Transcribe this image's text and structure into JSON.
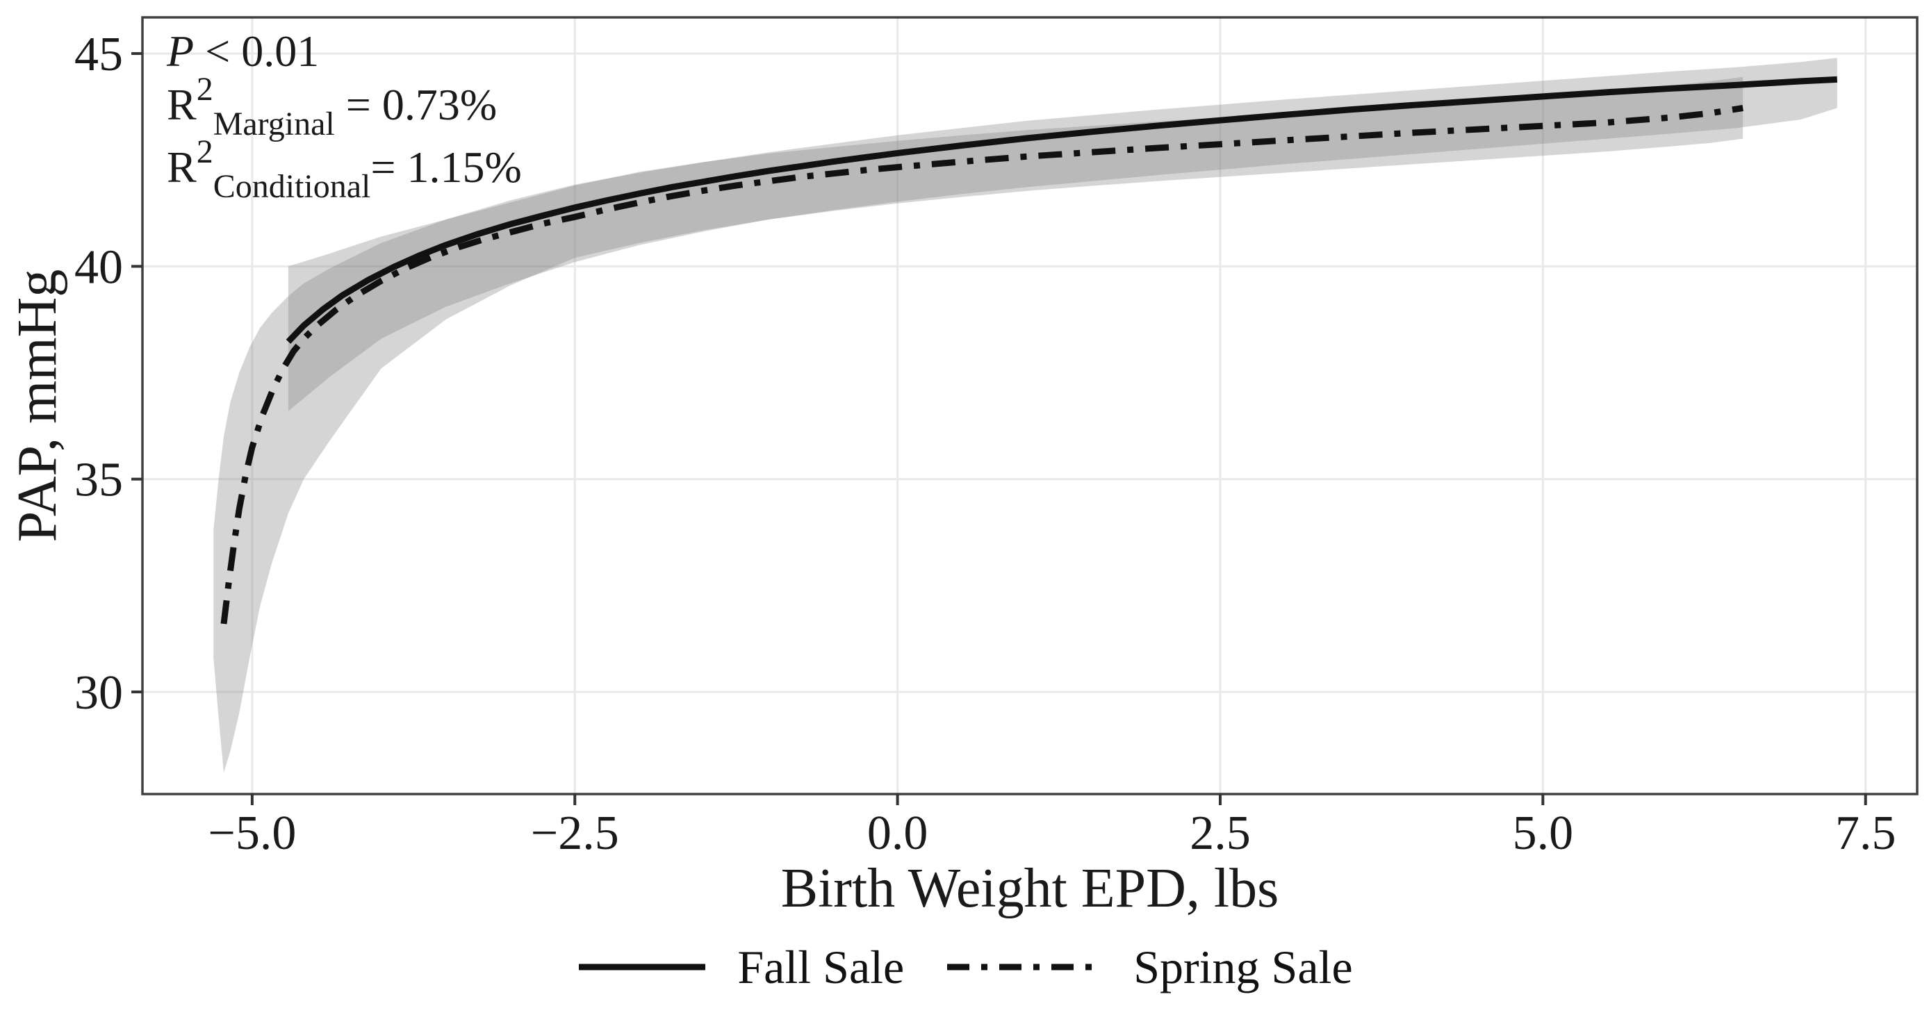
{
  "figure": {
    "background": "#ffffff",
    "annotation": {
      "line1": {
        "italic": "P",
        "rest": " < 0.01"
      },
      "line2": {
        "base": "R",
        "sup": "2",
        "sub": "Marginal",
        "rest": " = 0.73%"
      },
      "line3": {
        "base": "R",
        "sup": "2",
        "sub": "Conditional",
        "rest": "= 1.15%"
      }
    },
    "legend": [
      {
        "label": "Fall Sale",
        "line_style": "solid"
      },
      {
        "label": "Spring Sale",
        "line_style": "dash-dot"
      }
    ],
    "colors": {
      "line": "#111111",
      "band_fill": "#808080",
      "band_opacity": 0.33,
      "grid": "#e9e9e9",
      "border": "#404040",
      "tick": "#333333",
      "text": "#1a1a1a",
      "background": "#ffffff"
    }
  },
  "chart_data": {
    "type": "line",
    "title": "",
    "xlabel": "Birth Weight EPD, lbs",
    "ylabel": "PAP, mmHg",
    "xlim": [
      -5.85,
      7.9
    ],
    "ylim": [
      27.6,
      45.85
    ],
    "x_ticks": [
      -5.0,
      -2.5,
      0.0,
      2.5,
      5.0,
      7.5
    ],
    "x_tick_labels": [
      "−5.0",
      "−2.5",
      "0.0",
      "2.5",
      "5.0",
      "7.5"
    ],
    "y_ticks": [
      30,
      35,
      40,
      45
    ],
    "y_tick_labels": [
      "30",
      "35",
      "40",
      "45"
    ],
    "grid": "major",
    "legend_position": "bottom-center",
    "stats": {
      "p_value": "P < 0.01",
      "r2_marginal": "0.73%",
      "r2_conditional": "1.15%"
    },
    "series": [
      {
        "name": "Fall Sale",
        "style": "solid",
        "points": [
          [
            -4.72,
            38.23
          ],
          [
            -4.6,
            38.61
          ],
          [
            -4.45,
            38.99
          ],
          [
            -4.3,
            39.32
          ],
          [
            -4.1,
            39.68
          ],
          [
            -3.9,
            39.99
          ],
          [
            -3.7,
            40.26
          ],
          [
            -3.5,
            40.5
          ],
          [
            -3.25,
            40.76
          ],
          [
            -3.0,
            40.99
          ],
          [
            -2.75,
            41.19
          ],
          [
            -2.5,
            41.38
          ],
          [
            -2.25,
            41.55
          ],
          [
            -2.0,
            41.71
          ],
          [
            -1.75,
            41.86
          ],
          [
            -1.5,
            41.99
          ],
          [
            -1.25,
            42.12
          ],
          [
            -1.0,
            42.24
          ],
          [
            -0.75,
            42.35
          ],
          [
            -0.5,
            42.46
          ],
          [
            -0.25,
            42.56
          ],
          [
            0.0,
            42.66
          ],
          [
            0.5,
            42.84
          ],
          [
            1.0,
            43.01
          ],
          [
            1.5,
            43.16
          ],
          [
            2.0,
            43.3
          ],
          [
            2.5,
            43.43
          ],
          [
            3.0,
            43.56
          ],
          [
            3.5,
            43.68
          ],
          [
            4.0,
            43.79
          ],
          [
            4.5,
            43.89
          ],
          [
            5.0,
            43.99
          ],
          [
            5.5,
            44.09
          ],
          [
            6.0,
            44.18
          ],
          [
            6.5,
            44.26
          ],
          [
            7.0,
            44.35
          ],
          [
            7.28,
            44.39
          ]
        ],
        "band": {
          "x": [
            -4.72,
            -4.4,
            -4.0,
            -3.5,
            -3.0,
            -2.5,
            -2.0,
            -1.5,
            -1.0,
            -0.5,
            0.0,
            0.5,
            1.0,
            1.5,
            2.0,
            2.5,
            3.0,
            3.5,
            4.0,
            4.5,
            5.0,
            5.5,
            6.0,
            6.5,
            7.0,
            7.28
          ],
          "upper": [
            40.0,
            40.3,
            40.7,
            41.1,
            41.5,
            41.9,
            42.22,
            42.45,
            42.68,
            42.88,
            43.08,
            43.25,
            43.42,
            43.55,
            43.68,
            43.8,
            43.92,
            44.03,
            44.14,
            44.25,
            44.36,
            44.47,
            44.58,
            44.68,
            44.8,
            44.9
          ],
          "lower": [
            36.6,
            37.4,
            38.3,
            39.05,
            39.6,
            40.1,
            40.5,
            40.82,
            41.1,
            41.32,
            41.52,
            41.7,
            41.86,
            42.0,
            42.14,
            42.27,
            42.4,
            42.52,
            42.64,
            42.76,
            42.88,
            43.0,
            43.12,
            43.25,
            43.45,
            43.72
          ]
        }
      },
      {
        "name": "Spring Sale",
        "style": "dash-dot",
        "points": [
          [
            -5.22,
            31.6
          ],
          [
            -5.18,
            32.6
          ],
          [
            -5.14,
            33.5
          ],
          [
            -5.1,
            34.3
          ],
          [
            -5.05,
            35.1
          ],
          [
            -5.0,
            35.75
          ],
          [
            -4.92,
            36.5
          ],
          [
            -4.84,
            37.1
          ],
          [
            -4.76,
            37.6
          ],
          [
            -4.68,
            38.0
          ],
          [
            -4.6,
            38.3
          ],
          [
            -4.5,
            38.6
          ],
          [
            -4.35,
            38.98
          ],
          [
            -4.2,
            39.3
          ],
          [
            -4.0,
            39.66
          ],
          [
            -3.8,
            39.97
          ],
          [
            -3.6,
            40.23
          ],
          [
            -3.4,
            40.45
          ],
          [
            -3.2,
            40.64
          ],
          [
            -3.0,
            40.8
          ],
          [
            -2.75,
            41.0
          ],
          [
            -2.5,
            41.16
          ],
          [
            -2.25,
            41.34
          ],
          [
            -2.0,
            41.5
          ],
          [
            -1.75,
            41.65
          ],
          [
            -1.5,
            41.78
          ],
          [
            -1.25,
            41.9
          ],
          [
            -1.0,
            42.0
          ],
          [
            -0.75,
            42.1
          ],
          [
            -0.5,
            42.18
          ],
          [
            -0.25,
            42.26
          ],
          [
            0.0,
            42.33
          ],
          [
            0.5,
            42.46
          ],
          [
            1.0,
            42.58
          ],
          [
            1.5,
            42.68
          ],
          [
            2.0,
            42.78
          ],
          [
            2.5,
            42.87
          ],
          [
            3.0,
            42.96
          ],
          [
            3.5,
            43.05
          ],
          [
            4.0,
            43.14
          ],
          [
            4.5,
            43.22
          ],
          [
            5.0,
            43.3
          ],
          [
            5.5,
            43.38
          ],
          [
            6.0,
            43.5
          ],
          [
            6.3,
            43.6
          ],
          [
            6.55,
            43.72
          ]
        ],
        "band": {
          "x": [
            -5.3,
            -5.26,
            -5.22,
            -5.17,
            -5.1,
            -5.02,
            -4.94,
            -4.85,
            -4.72,
            -4.6,
            -4.4,
            -4.0,
            -3.5,
            -3.0,
            -2.5,
            -2.0,
            -1.5,
            -1.0,
            -0.5,
            0.0,
            0.5,
            1.0,
            1.5,
            2.0,
            2.5,
            3.0,
            3.5,
            4.0,
            4.5,
            5.0,
            5.5,
            6.0,
            6.3,
            6.55
          ],
          "upper": [
            33.8,
            35.0,
            36.0,
            36.8,
            37.5,
            38.1,
            38.55,
            38.9,
            39.3,
            39.6,
            39.95,
            40.55,
            41.1,
            41.55,
            41.92,
            42.2,
            42.45,
            42.65,
            42.8,
            42.95,
            43.08,
            43.2,
            43.3,
            43.4,
            43.5,
            43.6,
            43.7,
            43.8,
            43.9,
            44.0,
            44.1,
            44.25,
            44.35,
            44.45
          ],
          "lower": [
            30.8,
            29.4,
            28.1,
            28.6,
            29.5,
            30.8,
            32.0,
            33.0,
            34.2,
            35.0,
            35.9,
            37.6,
            38.75,
            39.55,
            40.2,
            40.55,
            40.85,
            41.1,
            41.3,
            41.48,
            41.63,
            41.77,
            41.89,
            42.0,
            42.1,
            42.2,
            42.3,
            42.4,
            42.5,
            42.6,
            42.7,
            42.82,
            42.9,
            43.0
          ]
        }
      }
    ]
  }
}
